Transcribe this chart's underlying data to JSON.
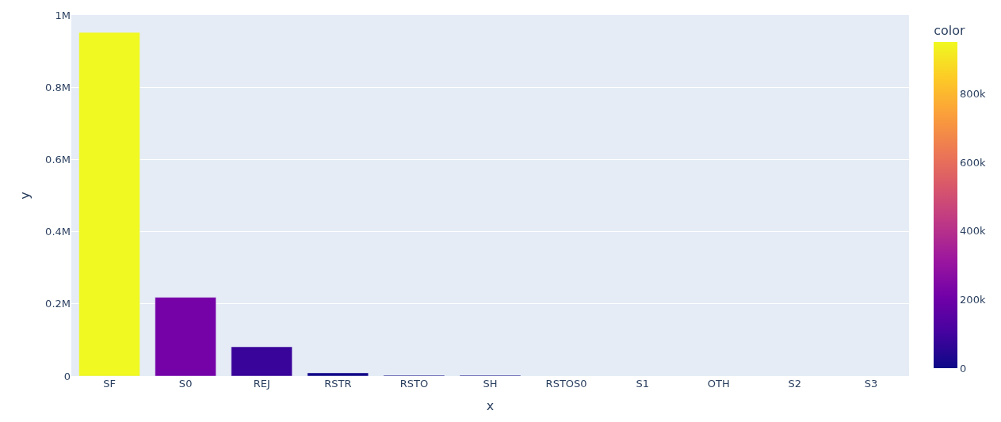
{
  "chart_data": {
    "type": "bar",
    "xlabel": "x",
    "ylabel": "y",
    "clabel": "color",
    "categories": [
      "SF",
      "S0",
      "REJ",
      "RSTR",
      "RSTO",
      "SH",
      "RSTOS0",
      "S1",
      "OTH",
      "S2",
      "S3"
    ],
    "values": [
      952000,
      218000,
      81000,
      9000,
      2000,
      2000,
      0,
      0,
      0,
      0,
      0
    ],
    "ylim": [
      0,
      1000000
    ],
    "yticks": [
      0,
      {
        "value": 200000,
        "label": "0.2M"
      },
      {
        "value": 400000,
        "label": "0.4M"
      },
      {
        "value": 600000,
        "label": "0.6M"
      },
      {
        "value": 800000,
        "label": "0.8M"
      },
      {
        "value": 1000000,
        "label": "1M"
      }
    ],
    "clim": [
      0,
      952000
    ],
    "cticks": [
      0,
      {
        "value": 200000,
        "label": "200k"
      },
      {
        "value": 400000,
        "label": "400k"
      },
      {
        "value": 600000,
        "label": "600k"
      },
      {
        "value": 800000,
        "label": "800k"
      }
    ],
    "grid": "y",
    "legend": false
  }
}
